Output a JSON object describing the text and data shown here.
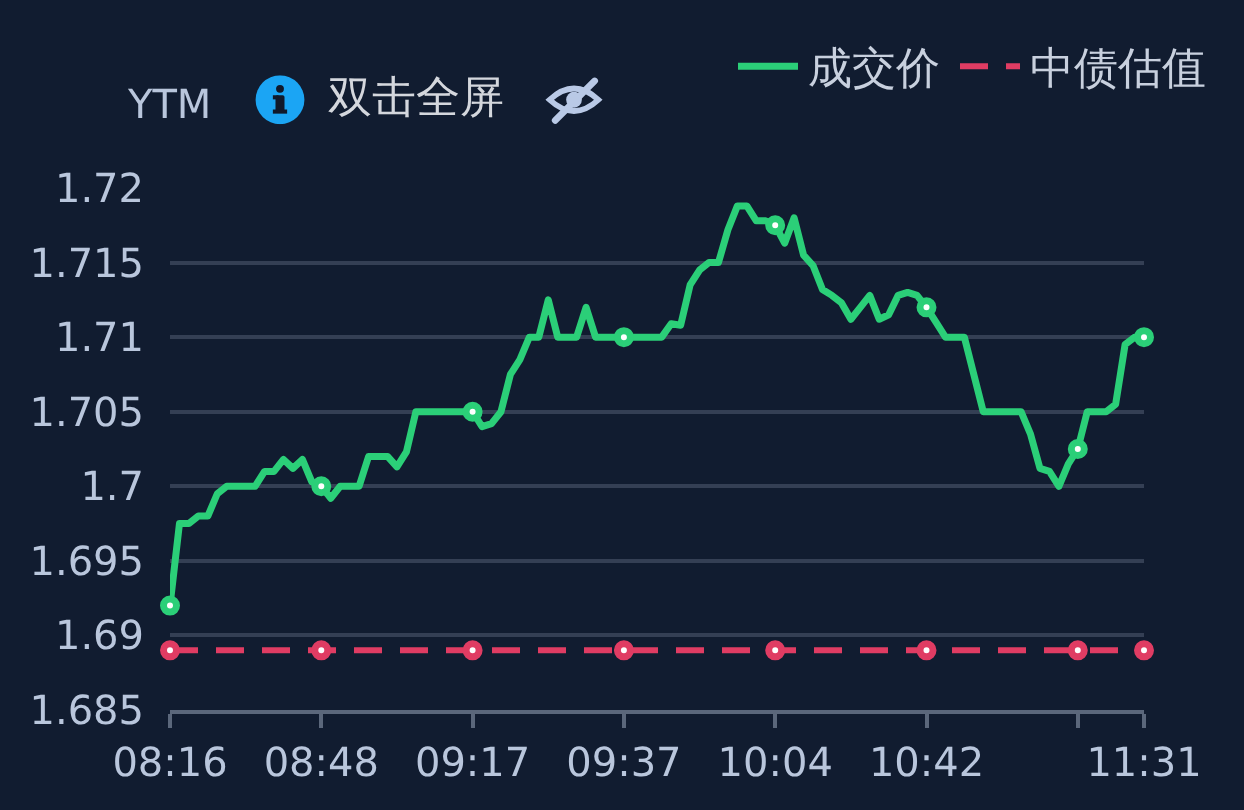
{
  "chart_data": {
    "type": "line",
    "ylabel": "YTM",
    "annotations": [
      "双击全屏"
    ],
    "categories": [
      "08:16",
      null,
      null,
      null,
      null,
      null,
      null,
      null,
      null,
      null,
      null,
      null,
      null,
      null,
      null,
      null,
      "08:48",
      null,
      null,
      null,
      null,
      null,
      null,
      null,
      null,
      null,
      null,
      null,
      null,
      null,
      null,
      null,
      "09:17",
      null,
      null,
      null,
      null,
      null,
      null,
      null,
      null,
      null,
      null,
      null,
      null,
      null,
      null,
      null,
      "09:37",
      null,
      null,
      null,
      null,
      null,
      null,
      null,
      null,
      null,
      null,
      null,
      null,
      null,
      null,
      null,
      "10:04",
      null,
      null,
      null,
      null,
      null,
      null,
      null,
      null,
      null,
      null,
      null,
      null,
      null,
      null,
      null,
      "10:42",
      null,
      null,
      null,
      null,
      null,
      null,
      null,
      null,
      null,
      null,
      null,
      null,
      null,
      null,
      null,
      null,
      null,
      null,
      null,
      null,
      null,
      null,
      "11:31"
    ],
    "series": [
      {
        "name": "成交价",
        "color": "#2bcf78",
        "values": [
          1.692,
          1.6975,
          1.6975,
          1.698,
          1.698,
          1.6995,
          1.7,
          1.7,
          1.7,
          1.7,
          1.701,
          1.701,
          1.7018,
          1.7012,
          1.7018,
          1.7003,
          1.7,
          1.6992,
          1.7,
          1.7,
          1.7,
          1.702,
          1.702,
          1.702,
          1.7013,
          1.7023,
          1.705,
          1.705,
          1.705,
          1.705,
          1.705,
          1.705,
          1.705,
          1.704,
          1.7042,
          1.705,
          1.7075,
          1.7085,
          1.71,
          1.71,
          1.7125,
          1.71,
          1.71,
          1.71,
          1.712,
          1.71,
          1.71,
          1.71,
          1.71,
          1.71,
          1.71,
          1.71,
          1.71,
          1.7109,
          1.7108,
          1.7135,
          1.7145,
          1.715,
          1.715,
          1.7172,
          1.7188,
          1.7188,
          1.7178,
          1.7178,
          1.7175,
          1.7163,
          1.718,
          1.7155,
          1.7148,
          1.7132,
          1.7128,
          1.7123,
          1.7112,
          1.712,
          1.7128,
          1.7112,
          1.7115,
          1.7128,
          1.713,
          1.7128,
          1.712,
          1.711,
          1.71,
          1.71,
          1.71,
          1.7075,
          1.705,
          1.705,
          1.705,
          1.705,
          1.705,
          1.7035,
          1.7012,
          1.701,
          1.7,
          1.7015,
          1.7025,
          1.705,
          1.705,
          1.705,
          1.7055,
          1.7095,
          1.71,
          1.71
        ]
      },
      {
        "name": "中债估值",
        "color": "#e03c63",
        "line_style": "dashed",
        "values": [
          1.689,
          1.689,
          1.689,
          1.689,
          1.689,
          1.689,
          1.689,
          1.689,
          1.689,
          1.689,
          1.689,
          1.689,
          1.689,
          1.689,
          1.689,
          1.689,
          1.689,
          1.689,
          1.689,
          1.689,
          1.689,
          1.689,
          1.689,
          1.689,
          1.689,
          1.689,
          1.689,
          1.689,
          1.689,
          1.689,
          1.689,
          1.689,
          1.689,
          1.689,
          1.689,
          1.689,
          1.689,
          1.689,
          1.689,
          1.689,
          1.689,
          1.689,
          1.689,
          1.689,
          1.689,
          1.689,
          1.689,
          1.689,
          1.689,
          1.689,
          1.689,
          1.689,
          1.689,
          1.689,
          1.689,
          1.689,
          1.689,
          1.689,
          1.689,
          1.689,
          1.689,
          1.689,
          1.689,
          1.689,
          1.689,
          1.689,
          1.689,
          1.689,
          1.689,
          1.689,
          1.689,
          1.689,
          1.689,
          1.689,
          1.689,
          1.689,
          1.689,
          1.689,
          1.689,
          1.689,
          1.689,
          1.689,
          1.689,
          1.689,
          1.689,
          1.689,
          1.689,
          1.689,
          1.689,
          1.689,
          1.689,
          1.689,
          1.689,
          1.689,
          1.689,
          1.689,
          1.689,
          1.689,
          1.689,
          1.689,
          1.689,
          1.689,
          1.689,
          1.689
        ]
      },
      {
        "type": "scatter",
        "color": "#2bcf78",
        "marker": "circle",
        "values": [
          1.692,
          null,
          null,
          null,
          null,
          null,
          null,
          null,
          null,
          null,
          null,
          null,
          null,
          null,
          null,
          null,
          1.7,
          null,
          null,
          null,
          null,
          null,
          null,
          null,
          null,
          null,
          null,
          null,
          null,
          null,
          null,
          null,
          1.705,
          null,
          null,
          null,
          null,
          null,
          null,
          null,
          null,
          null,
          null,
          null,
          null,
          null,
          null,
          null,
          1.71,
          null,
          null,
          null,
          null,
          null,
          null,
          null,
          null,
          null,
          null,
          null,
          null,
          null,
          null,
          null,
          1.7175,
          null,
          null,
          null,
          null,
          null,
          null,
          null,
          null,
          null,
          null,
          null,
          null,
          null,
          null,
          null,
          1.712,
          null,
          null,
          null,
          null,
          null,
          null,
          null,
          null,
          null,
          null,
          null,
          null,
          null,
          null,
          null,
          1.7025,
          null,
          null,
          null,
          null,
          null,
          null,
          1.71
        ]
      },
      {
        "type": "scatter",
        "color": "#e03c63",
        "marker": "circle",
        "values": [
          1.689,
          null,
          null,
          null,
          null,
          null,
          null,
          null,
          null,
          null,
          null,
          null,
          null,
          null,
          null,
          null,
          1.689,
          null,
          null,
          null,
          null,
          null,
          null,
          null,
          null,
          null,
          null,
          null,
          null,
          null,
          null,
          null,
          1.689,
          null,
          null,
          null,
          null,
          null,
          null,
          null,
          null,
          null,
          null,
          null,
          null,
          null,
          null,
          null,
          1.689,
          null,
          null,
          null,
          null,
          null,
          null,
          null,
          null,
          null,
          null,
          null,
          null,
          null,
          null,
          null,
          1.689,
          null,
          null,
          null,
          null,
          null,
          null,
          null,
          null,
          null,
          null,
          null,
          null,
          null,
          null,
          null,
          1.689,
          null,
          null,
          null,
          null,
          null,
          null,
          null,
          null,
          null,
          null,
          null,
          null,
          null,
          null,
          null,
          1.689,
          null,
          null,
          null,
          null,
          null,
          null,
          1.689
        ]
      }
    ],
    "ylim": [
      1.685,
      1.72
    ],
    "yticks": [
      1.685,
      1.69,
      1.695,
      1.7,
      1.705,
      1.71,
      1.715,
      1.72
    ],
    "grid": "y",
    "legend": "top right"
  }
}
